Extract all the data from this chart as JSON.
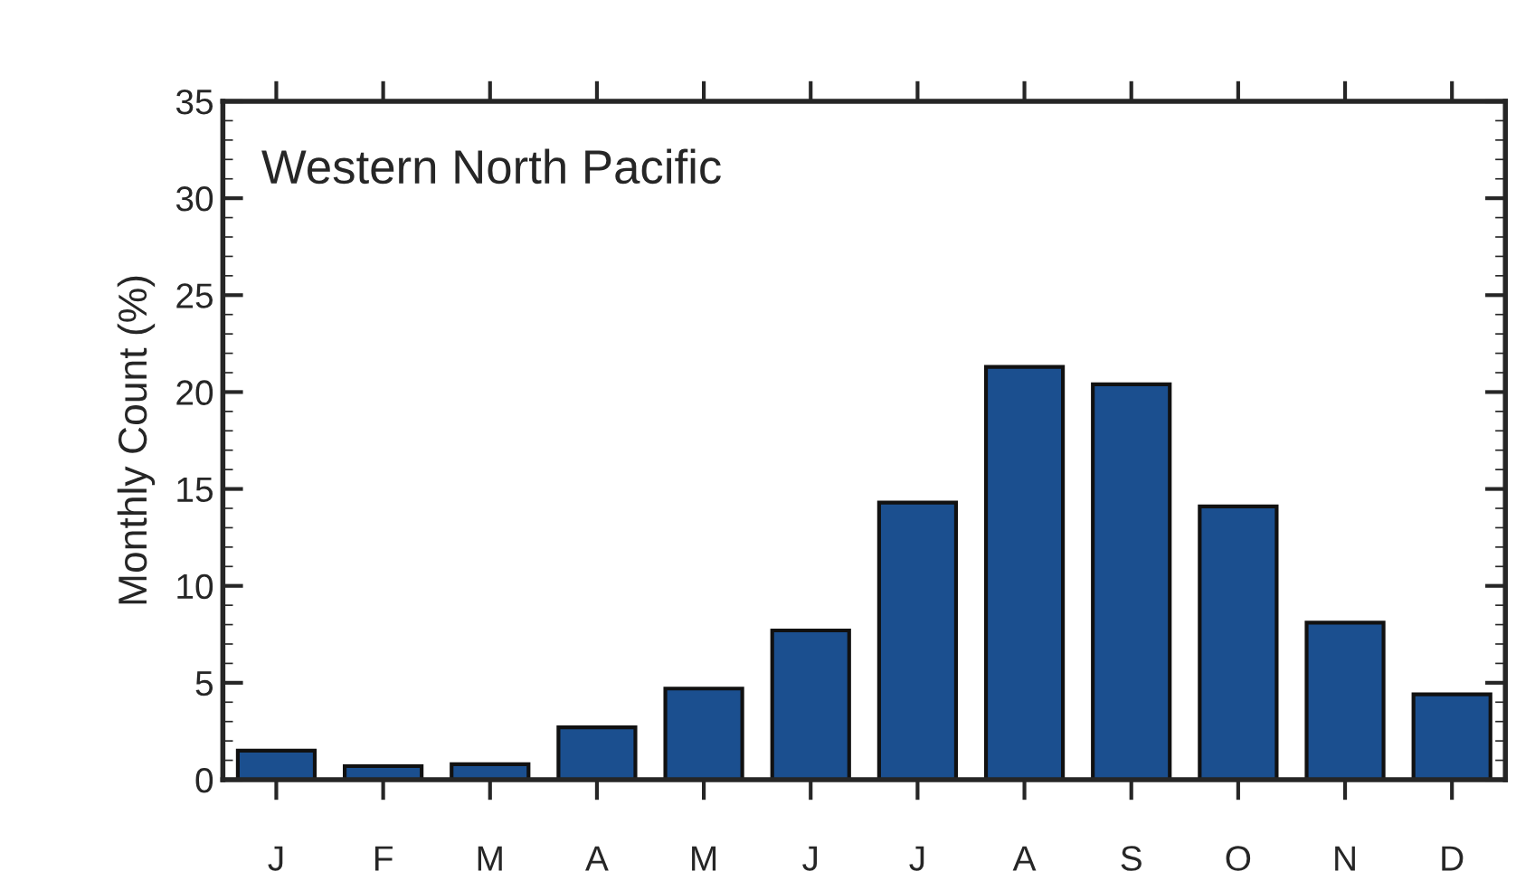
{
  "chart_data": {
    "type": "bar",
    "title": "Western North Pacific",
    "ylabel": "Monthly Count (%)",
    "categories": [
      "J",
      "F",
      "M",
      "A",
      "M",
      "J",
      "J",
      "A",
      "S",
      "O",
      "N",
      "D"
    ],
    "values": [
      1.5,
      0.7,
      0.8,
      2.7,
      4.7,
      7.7,
      14.3,
      21.3,
      20.4,
      14.1,
      8.1,
      4.4
    ],
    "color": "#1b4f8f",
    "ylim": [
      0,
      35
    ],
    "yticks": [
      0,
      5,
      10,
      15,
      20,
      25,
      30,
      35
    ],
    "grid": false,
    "legend": false
  }
}
